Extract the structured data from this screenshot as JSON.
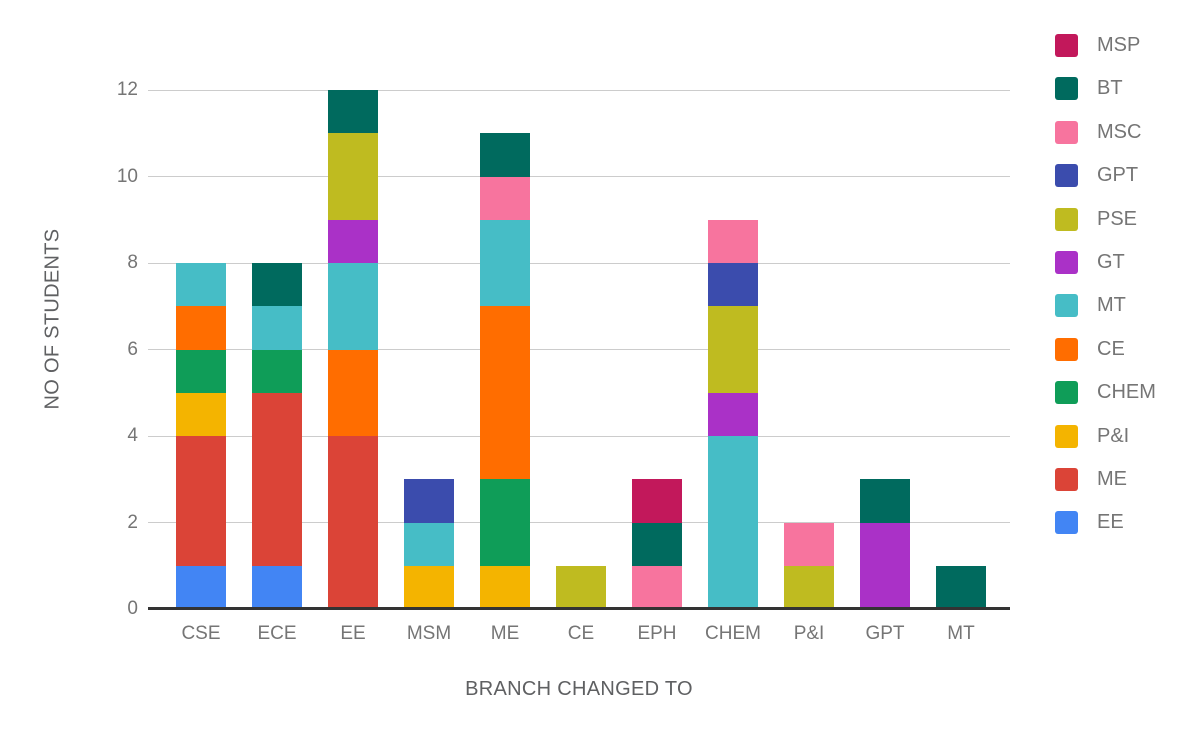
{
  "chart_data": {
    "type": "bar",
    "variant": "stacked-vertical",
    "title": "",
    "xlabel": "BRANCH CHANGED TO",
    "ylabel": "NO OF STUDENTS",
    "categories": [
      "CSE",
      "ECE",
      "EE",
      "MSM",
      "ME",
      "CE",
      "EPH",
      "CHEM",
      "P&I",
      "GPT",
      "MT"
    ],
    "y_ticks": [
      0,
      2,
      4,
      6,
      8,
      10,
      12
    ],
    "ylim": [
      0,
      12
    ],
    "grid": true,
    "legend_position": "right",
    "series": [
      {
        "name": "EE",
        "color": "#4285F4",
        "values": [
          1,
          1,
          0,
          0,
          0,
          0,
          0,
          0,
          0,
          0,
          0
        ]
      },
      {
        "name": "ME",
        "color": "#DB4437",
        "values": [
          3,
          4,
          4,
          0,
          0,
          0,
          0,
          0,
          0,
          0,
          0
        ]
      },
      {
        "name": "P&I",
        "color": "#F4B400",
        "values": [
          1,
          0,
          0,
          1,
          1,
          0,
          0,
          0,
          0,
          0,
          0
        ]
      },
      {
        "name": "CHEM",
        "color": "#0F9D58",
        "values": [
          1,
          1,
          0,
          0,
          2,
          0,
          0,
          0,
          0,
          0,
          0
        ]
      },
      {
        "name": "CE",
        "color": "#FF6D00",
        "values": [
          1,
          0,
          2,
          0,
          4,
          0,
          0,
          0,
          0,
          0,
          0
        ]
      },
      {
        "name": "MT",
        "color": "#46BDC6",
        "values": [
          1,
          1,
          2,
          1,
          2,
          0,
          0,
          4,
          0,
          0,
          0
        ]
      },
      {
        "name": "GT",
        "color": "#AA31C7",
        "values": [
          0,
          0,
          1,
          0,
          0,
          0,
          0,
          1,
          0,
          2,
          0
        ]
      },
      {
        "name": "PSE",
        "color": "#BFBB20",
        "values": [
          0,
          0,
          2,
          0,
          0,
          1,
          0,
          2,
          1,
          0,
          0
        ]
      },
      {
        "name": "GPT",
        "color": "#3B4CAD",
        "values": [
          0,
          0,
          0,
          1,
          0,
          0,
          0,
          1,
          0,
          0,
          0
        ]
      },
      {
        "name": "MSC",
        "color": "#F7749E",
        "values": [
          0,
          0,
          0,
          0,
          1,
          0,
          1,
          1,
          1,
          0,
          0
        ]
      },
      {
        "name": "BT",
        "color": "#006A5E",
        "values": [
          0,
          1,
          1,
          0,
          1,
          0,
          1,
          0,
          0,
          1,
          1
        ]
      },
      {
        "name": "MSP",
        "color": "#C2185B",
        "values": [
          0,
          0,
          0,
          0,
          0,
          0,
          1,
          0,
          0,
          0,
          0
        ]
      }
    ],
    "category_totals": [
      8,
      8,
      12,
      3,
      11,
      1,
      3,
      9,
      2,
      3,
      1
    ],
    "legend_order_top_to_bottom": [
      "MSP",
      "BT",
      "MSC",
      "GPT",
      "PSE",
      "GT",
      "MT",
      "CE",
      "CHEM",
      "P&I",
      "ME",
      "EE"
    ]
  },
  "colors": {
    "background": "#FFFFFF",
    "gridline": "#CCCCCC",
    "axis_line": "#333333",
    "tick_label": "#757575",
    "axis_title": "#5F6062",
    "legend_label": "#757575"
  }
}
